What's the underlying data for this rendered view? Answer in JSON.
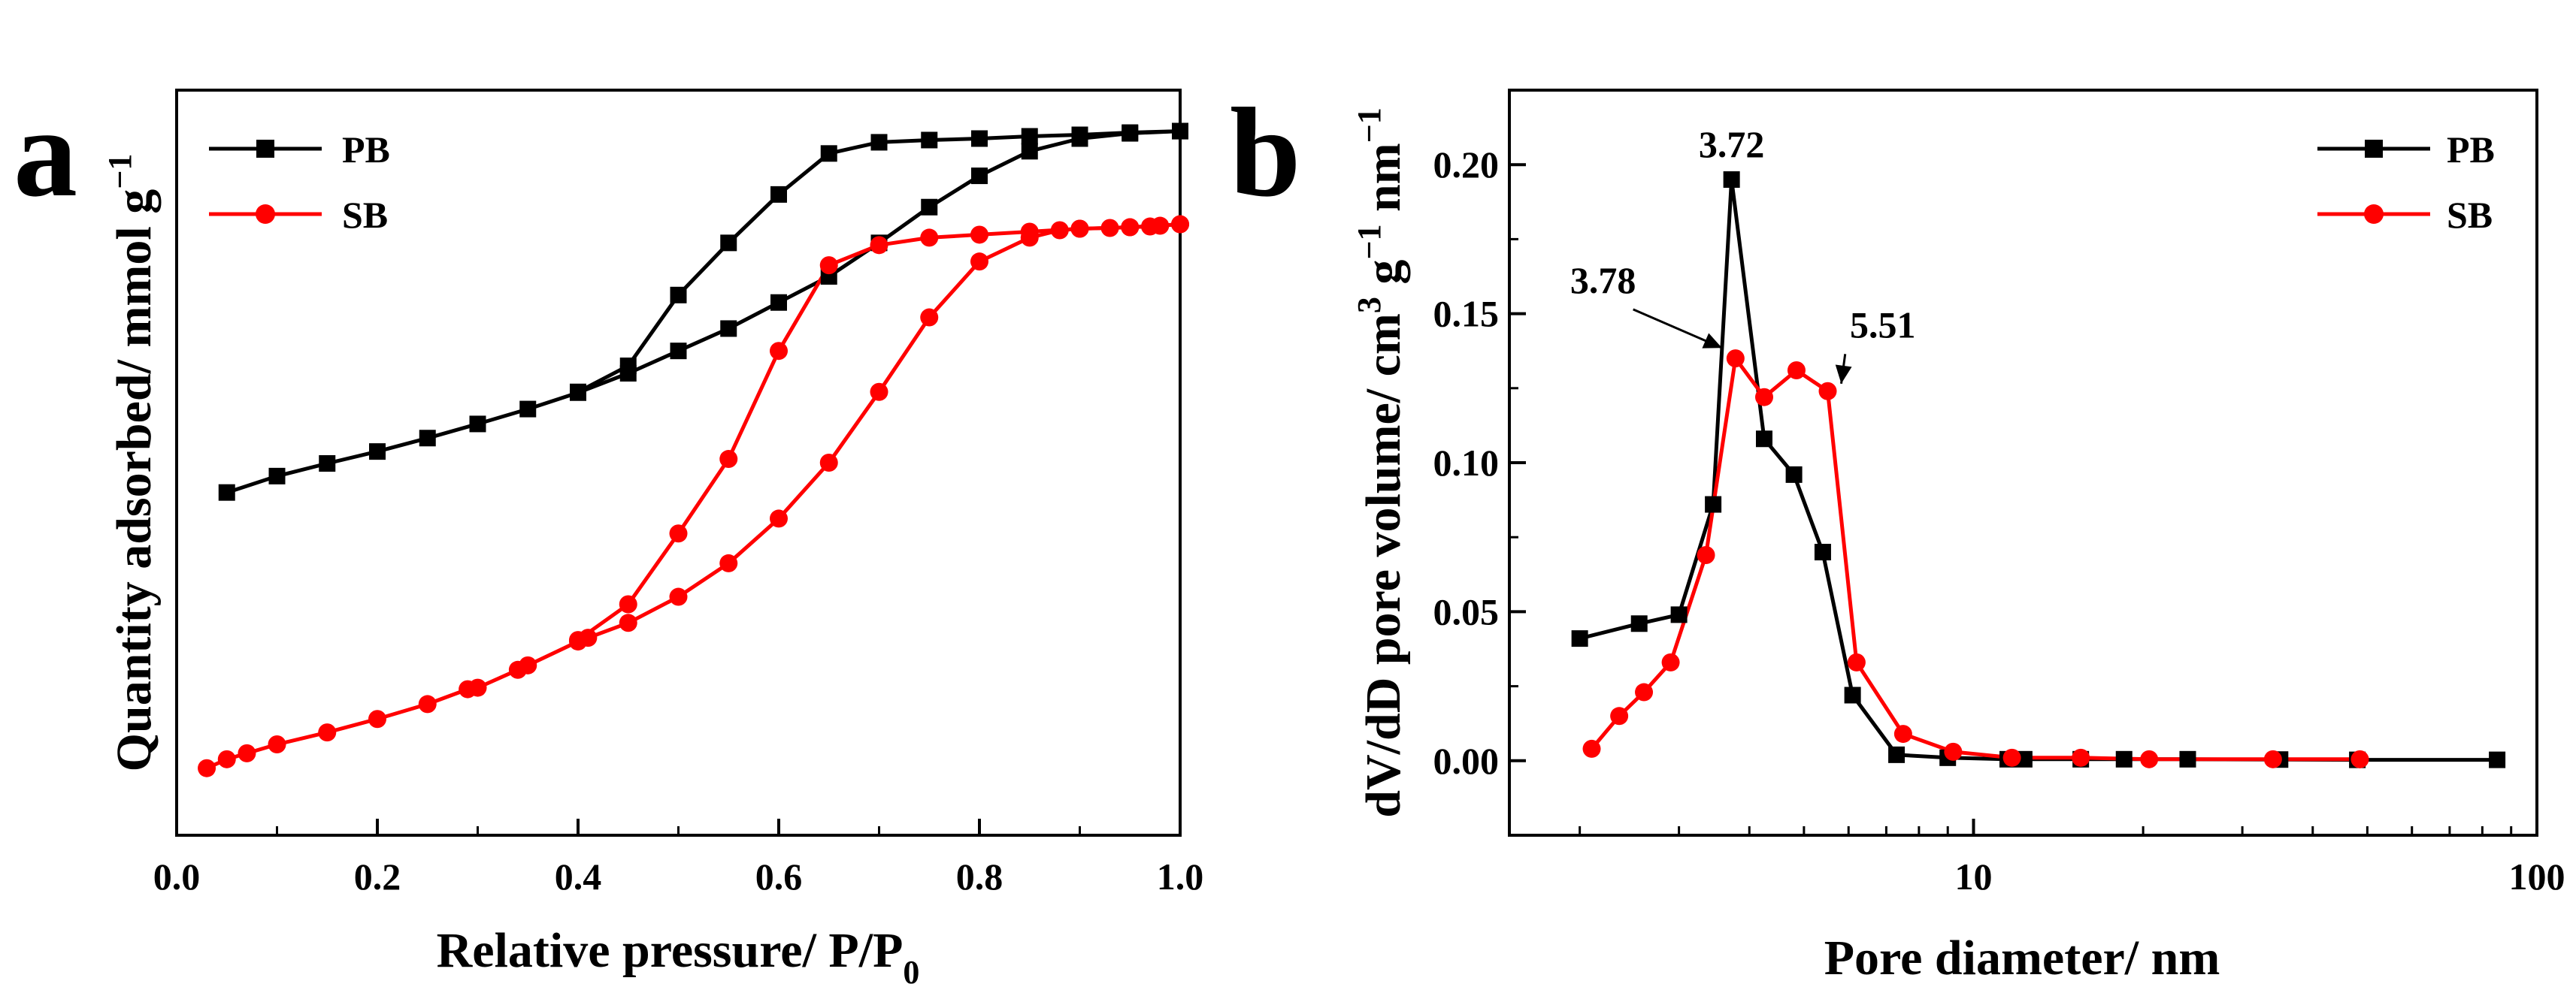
{
  "chart_data": [
    {
      "type": "line",
      "panel": "a",
      "xlabel": "Relative pressure/ P/P0",
      "xlabel_main": "Relative pressure/ P/P",
      "xlabel_sub": "0",
      "ylabel": "Quantity adsorbed/ mmol g−1",
      "ylabel_main": "Quantity adsorbed/ mmol g",
      "ylabel_sup": "−1",
      "xlim": [
        0.0,
        1.0
      ],
      "ylim": [
        0,
        10
      ],
      "x_ticks": [
        0.0,
        0.2,
        0.4,
        0.6,
        0.8,
        1.0
      ],
      "x_tick_labels": [
        "0.0",
        "0.2",
        "0.4",
        "0.6",
        "0.8",
        "1.0"
      ],
      "y_tick_labels": false,
      "legend": [
        {
          "name": "PB",
          "color": "#000000",
          "marker": "square"
        },
        {
          "name": "SB",
          "color": "#ff0000",
          "marker": "circle"
        }
      ],
      "series": [
        {
          "name": "PB",
          "color": "#000000",
          "marker": "square",
          "branches": [
            {
              "label": "adsorption",
              "x": [
                0.05,
                0.1,
                0.15,
                0.2,
                0.25,
                0.3,
                0.35,
                0.4,
                0.45,
                0.5,
                0.55,
                0.6,
                0.65,
                0.7,
                0.75,
                0.8,
                0.85,
                0.9,
                0.95,
                1.0
              ],
              "y": [
                4.6,
                4.82,
                4.99,
                5.15,
                5.33,
                5.52,
                5.72,
                5.94,
                6.2,
                6.5,
                6.8,
                7.15,
                7.5,
                7.95,
                8.43,
                8.85,
                9.18,
                9.35,
                9.42,
                9.45
              ]
            },
            {
              "label": "desorption",
              "x": [
                1.0,
                0.95,
                0.9,
                0.85,
                0.8,
                0.75,
                0.7,
                0.65,
                0.6,
                0.55,
                0.5,
                0.45,
                0.4
              ],
              "y": [
                9.45,
                9.43,
                9.4,
                9.38,
                9.35,
                9.33,
                9.3,
                9.15,
                8.6,
                7.95,
                7.25,
                6.3,
                5.95
              ]
            }
          ]
        },
        {
          "name": "SB",
          "color": "#ff0000",
          "marker": "circle",
          "branches": [
            {
              "label": "adsorption",
              "x": [
                0.03,
                0.05,
                0.07,
                0.1,
                0.15,
                0.2,
                0.25,
                0.29,
                0.3,
                0.34,
                0.35,
                0.4,
                0.41,
                0.45,
                0.5,
                0.55,
                0.6,
                0.65,
                0.7,
                0.75,
                0.8,
                0.85,
                0.88,
                0.9,
                0.93,
                0.95,
                0.97,
                0.98,
                1.0
              ],
              "y": [
                0.9,
                1.02,
                1.1,
                1.22,
                1.38,
                1.56,
                1.76,
                1.96,
                1.98,
                2.22,
                2.28,
                2.6,
                2.65,
                2.85,
                3.2,
                3.65,
                4.25,
                5.0,
                5.95,
                6.95,
                7.7,
                8.02,
                8.12,
                8.14,
                8.15,
                8.16,
                8.17,
                8.18,
                8.2
              ]
            },
            {
              "label": "desorption",
              "x": [
                1.0,
                0.95,
                0.9,
                0.85,
                0.8,
                0.75,
                0.7,
                0.65,
                0.6,
                0.55,
                0.5,
                0.45,
                0.4
              ],
              "y": [
                8.2,
                8.16,
                8.14,
                8.1,
                8.06,
                8.02,
                7.92,
                7.65,
                6.5,
                5.05,
                4.05,
                3.1,
                2.62
              ]
            }
          ]
        }
      ]
    },
    {
      "type": "line",
      "panel": "b",
      "xlabel": "Pore diameter/ nm",
      "ylabel": "dV/dD pore volume/ cm3 g−1 nm−1",
      "ylabel_p1": "dV/dD pore volume/ cm",
      "ylabel_sup1": "3",
      "ylabel_p2": " g",
      "ylabel_sup2": "−1",
      "ylabel_p3": " nm",
      "ylabel_sup3": "−1",
      "x_scale": "log",
      "xlim": [
        1.5,
        100
      ],
      "ylim": [
        -0.025,
        0.225
      ],
      "x_ticks": [
        10,
        100
      ],
      "x_tick_labels": [
        "10",
        "100"
      ],
      "y_ticks": [
        0.0,
        0.05,
        0.1,
        0.15,
        0.2
      ],
      "y_tick_labels": [
        "0.00",
        "0.05",
        "0.10",
        "0.15",
        "0.20"
      ],
      "legend": [
        {
          "name": "PB",
          "color": "#000000",
          "marker": "square"
        },
        {
          "name": "SB",
          "color": "#ff0000",
          "marker": "circle"
        }
      ],
      "annotations": [
        {
          "text": "3.72",
          "x": 3.72,
          "y": 0.195,
          "arrow": false
        },
        {
          "text": "3.78",
          "x": 3.78,
          "y": 0.135,
          "arrow": true,
          "text_x": 2.2,
          "text_y": 0.157
        },
        {
          "text": "5.51",
          "x": 5.51,
          "y": 0.124,
          "arrow": true,
          "text_x": 6.9,
          "text_y": 0.142
        }
      ],
      "series": [
        {
          "name": "PB",
          "color": "#000000",
          "marker": "square",
          "x": [
            2.0,
            2.55,
            3.0,
            3.45,
            3.72,
            4.25,
            4.8,
            5.4,
            6.1,
            7.3,
            9.0,
            11.5,
            12.3,
            15.5,
            18.5,
            24.0,
            35.0,
            48.0,
            85.0
          ],
          "y": [
            0.041,
            0.046,
            0.049,
            0.086,
            0.195,
            0.108,
            0.096,
            0.07,
            0.022,
            0.002,
            0.001,
            0.0005,
            0.0005,
            0.0005,
            0.0005,
            0.0005,
            0.0004,
            0.0003,
            0.0003
          ]
        },
        {
          "name": "SB",
          "color": "#ff0000",
          "marker": "circle",
          "x": [
            2.1,
            2.35,
            2.6,
            2.9,
            3.35,
            3.78,
            4.25,
            4.85,
            5.51,
            6.2,
            7.5,
            9.2,
            11.7,
            15.5,
            20.5,
            34.0,
            48.5
          ],
          "y": [
            0.004,
            0.015,
            0.023,
            0.033,
            0.069,
            0.135,
            0.122,
            0.131,
            0.124,
            0.033,
            0.009,
            0.003,
            0.001,
            0.001,
            0.0005,
            0.0005,
            0.0005
          ]
        }
      ]
    }
  ]
}
